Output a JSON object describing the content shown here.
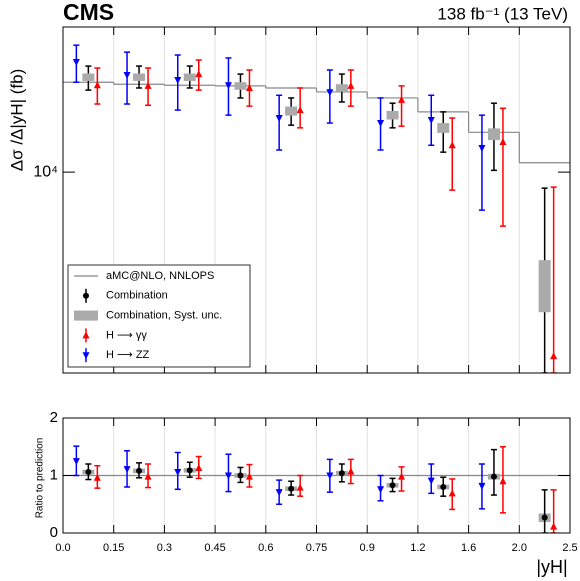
{
  "chart_data": [
    {
      "type": "errorbar",
      "title": "CMS",
      "subtitle": "138 fb⁻¹ (13 TeV)",
      "y_label": "Δσ /Δ|yH| (fb)",
      "log_y": true,
      "ylim": [
        1060,
        50600
      ],
      "yticks": [
        {
          "value": 10000,
          "label": "10⁴"
        }
      ],
      "grid": true,
      "legend": "lower left",
      "series": [
        {
          "name": "aMC@NLO, NNLOPS",
          "color": "#888888",
          "style": "step",
          "values": [
            27300,
            26700,
            26400,
            26200,
            25600,
            24500,
            22900,
            19600,
            15600,
            11100
          ]
        },
        {
          "name": "Combination",
          "color": "#000000",
          "style": "point",
          "values": [
            28900,
            28900,
            28900,
            26200,
            19800,
            25600,
            18900,
            16400,
            15300,
            2800
          ],
          "upper": [
            32700,
            32700,
            32700,
            29900,
            22900,
            29900,
            21600,
            19600,
            21600,
            8360
          ],
          "lower": [
            25000,
            25600,
            25600,
            22900,
            16900,
            21900,
            16400,
            12500,
            10200,
            1060
          ]
        },
        {
          "name": "Combination, Syst. unc.",
          "color": "#aaaaaa",
          "style": "box",
          "upper": [
            30100,
            30100,
            30100,
            27300,
            20800,
            26700,
            19800,
            17300,
            16300,
            3740
          ],
          "lower": [
            27700,
            27700,
            27700,
            25100,
            18800,
            24500,
            18000,
            15500,
            14300,
            2090
          ]
        },
        {
          "name": "H ⟶ γγ",
          "color": "#ff0000",
          "style": "point_up",
          "values": [
            26400,
            26200,
            29900,
            25600,
            20000,
            26200,
            22400,
            13500,
            14000,
            1280
          ],
          "upper": [
            32000,
            32000,
            35000,
            31300,
            25600,
            31300,
            26200,
            18300,
            20400,
            8460
          ],
          "lower": [
            21400,
            21100,
            25000,
            20900,
            16400,
            20900,
            16700,
            8180,
            5470,
            1060
          ]
        },
        {
          "name": "H ⟶ ZZ",
          "color": "#0000ff",
          "style": "point_down",
          "values": [
            34200,
            29600,
            28000,
            26400,
            18300,
            24400,
            17300,
            17900,
            13100,
            null
          ],
          "upper": [
            41300,
            38200,
            37000,
            35800,
            23600,
            31300,
            22900,
            23600,
            18900,
            null
          ],
          "lower": [
            27300,
            21400,
            20000,
            18900,
            12800,
            17300,
            12800,
            13500,
            6540,
            null
          ]
        }
      ]
    },
    {
      "type": "errorbar",
      "y_label": "Ratio to prediction",
      "x_label": "|yH|",
      "bin_edges": [
        "0.0",
        "0.15",
        "0.3",
        "0.45",
        "0.6",
        "0.75",
        "0.9",
        "1.2",
        "1.6",
        "2.0",
        "2.5"
      ],
      "ylim": [
        0,
        2
      ],
      "yticks": [
        0,
        1,
        2
      ],
      "reference_line": 1,
      "grid": true,
      "series": [
        {
          "color": "#aaaaaa",
          "style": "box",
          "upper": [
            1.1,
            1.12,
            1.13,
            1.04,
            0.81,
            1.08,
            0.87,
            0.84,
            1.03,
            0.34
          ],
          "lower": [
            1.02,
            1.04,
            1.05,
            0.96,
            0.73,
            1.0,
            0.79,
            0.76,
            0.93,
            0.19
          ]
        },
        {
          "color": "#000000",
          "style": "point",
          "values": [
            1.06,
            1.08,
            1.09,
            1.0,
            0.77,
            1.04,
            0.83,
            0.8,
            0.98,
            0.27
          ],
          "upper": [
            1.2,
            1.22,
            1.23,
            1.14,
            0.9,
            1.2,
            0.95,
            0.97,
            1.45,
            0.75
          ],
          "lower": [
            0.93,
            0.96,
            0.97,
            0.88,
            0.66,
            0.89,
            0.72,
            0.64,
            0.66,
            0.0
          ]
        },
        {
          "color": "#ff0000",
          "style": "point_up",
          "values": [
            0.96,
            0.98,
            1.13,
            0.98,
            0.79,
            1.07,
            0.98,
            0.69,
            0.9,
            0.11
          ],
          "upper": [
            1.17,
            1.2,
            1.33,
            1.19,
            1.0,
            1.28,
            1.15,
            0.94,
            1.5,
            0.75
          ],
          "lower": [
            0.78,
            0.79,
            0.95,
            0.8,
            0.64,
            0.86,
            0.73,
            0.41,
            0.35,
            0.0
          ]
        },
        {
          "color": "#0000ff",
          "style": "point_down",
          "values": [
            1.25,
            1.11,
            1.06,
            1.0,
            0.71,
            1.0,
            0.76,
            0.91,
            0.82,
            null
          ],
          "upper": [
            1.51,
            1.43,
            1.4,
            1.37,
            0.92,
            1.28,
            1.0,
            1.2,
            1.2,
            null
          ],
          "lower": [
            1.0,
            0.8,
            0.76,
            0.72,
            0.5,
            0.71,
            0.56,
            0.69,
            0.42,
            null
          ]
        }
      ]
    }
  ]
}
